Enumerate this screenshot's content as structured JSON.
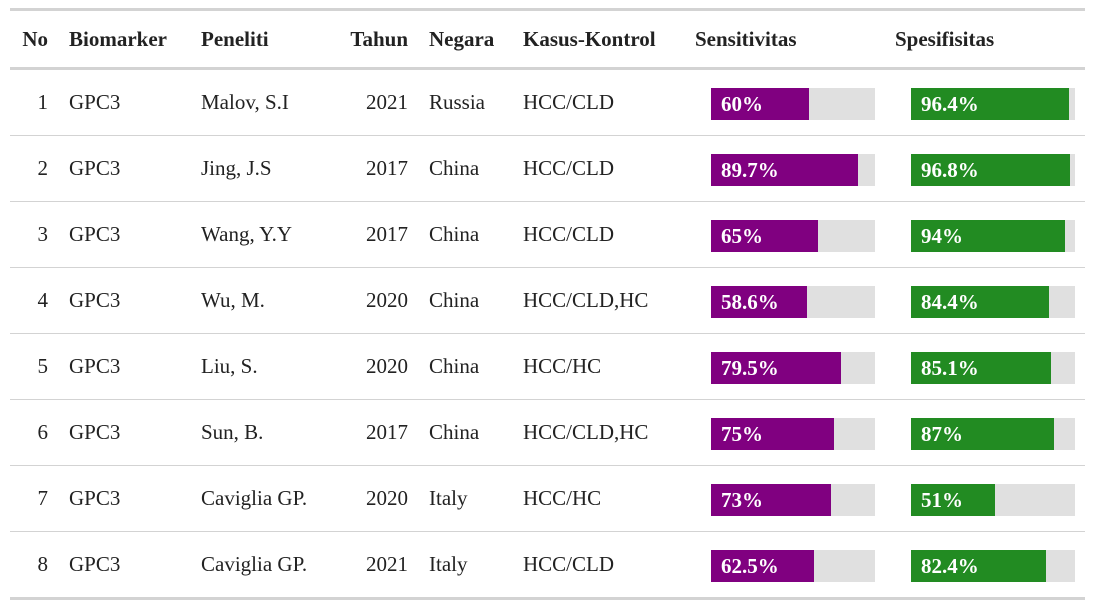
{
  "headers": {
    "no": "No",
    "biomarker": "Biomarker",
    "peneliti": "Peneliti",
    "tahun": "Tahun",
    "negara": "Negara",
    "kasus_kontrol": "Kasus-Kontrol",
    "sensitivitas": "Sensitivitas",
    "spesifisitas": "Spesifisitas"
  },
  "colors": {
    "sensitivitas_bar": "#800080",
    "spesifisitas_bar": "#228b22",
    "bar_track": "#e0e0e0"
  },
  "rows": [
    {
      "no": "1",
      "biomarker": "GPC3",
      "peneliti": "Malov, S.I",
      "tahun": "2021",
      "negara": "Russia",
      "kasus_kontrol": "HCC/CLD",
      "sensitivitas": "60%",
      "sensitivitas_value": 60,
      "spesifisitas": "96.4%",
      "spesifisitas_value": 96.4
    },
    {
      "no": "2",
      "biomarker": "GPC3",
      "peneliti": "Jing, J.S",
      "tahun": "2017",
      "negara": "China",
      "kasus_kontrol": "HCC/CLD",
      "sensitivitas": "89.7%",
      "sensitivitas_value": 89.7,
      "spesifisitas": "96.8%",
      "spesifisitas_value": 96.8
    },
    {
      "no": "3",
      "biomarker": "GPC3",
      "peneliti": "Wang, Y.Y",
      "tahun": "2017",
      "negara": "China",
      "kasus_kontrol": "HCC/CLD",
      "sensitivitas": "65%",
      "sensitivitas_value": 65,
      "spesifisitas": "94%",
      "spesifisitas_value": 94
    },
    {
      "no": "4",
      "biomarker": "GPC3",
      "peneliti": "Wu, M.",
      "tahun": "2020",
      "negara": "China",
      "kasus_kontrol": "HCC/CLD,HC",
      "sensitivitas": "58.6%",
      "sensitivitas_value": 58.6,
      "spesifisitas": "84.4%",
      "spesifisitas_value": 84.4
    },
    {
      "no": "5",
      "biomarker": "GPC3",
      "peneliti": "Liu, S.",
      "tahun": "2020",
      "negara": "China",
      "kasus_kontrol": "HCC/HC",
      "sensitivitas": "79.5%",
      "sensitivitas_value": 79.5,
      "spesifisitas": "85.1%",
      "spesifisitas_value": 85.1
    },
    {
      "no": "6",
      "biomarker": "GPC3",
      "peneliti": "Sun, B.",
      "tahun": "2017",
      "negara": "China",
      "kasus_kontrol": "HCC/CLD,HC",
      "sensitivitas": "75%",
      "sensitivitas_value": 75,
      "spesifisitas": "87%",
      "spesifisitas_value": 87
    },
    {
      "no": "7",
      "biomarker": "GPC3",
      "peneliti": "Caviglia GP.",
      "tahun": "2020",
      "negara": "Italy",
      "kasus_kontrol": "HCC/HC",
      "sensitivitas": "73%",
      "sensitivitas_value": 73,
      "spesifisitas": "51%",
      "spesifisitas_value": 51
    },
    {
      "no": "8",
      "biomarker": "GPC3",
      "peneliti": "Caviglia GP.",
      "tahun": "2021",
      "negara": "Italy",
      "kasus_kontrol": "HCC/CLD",
      "sensitivitas": "62.5%",
      "sensitivitas_value": 62.5,
      "spesifisitas": "82.4%",
      "spesifisitas_value": 82.4
    }
  ]
}
